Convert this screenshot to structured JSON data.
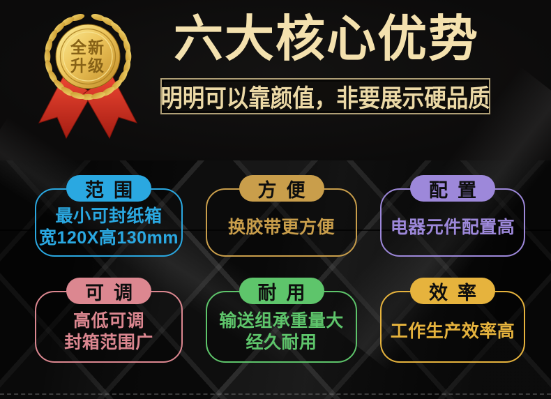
{
  "medal": {
    "line1": "全新",
    "line2": "升级"
  },
  "header": {
    "title": "六大核心优势",
    "subtitle": "明明可以靠颜值，非要展示硬品质"
  },
  "advantages": [
    {
      "tag": "范围",
      "lines": [
        "最小可封纸箱",
        "宽120X高130mm"
      ],
      "color": "#2aa8e1"
    },
    {
      "tag": "方便",
      "lines": [
        "换胶带更方便"
      ],
      "color": "#c99e4b"
    },
    {
      "tag": "配置",
      "lines": [
        "电器元件配置高"
      ],
      "color": "#9d88da"
    },
    {
      "tag": "可调",
      "lines": [
        "高低可调",
        "封箱范围广"
      ],
      "color": "#dc8790"
    },
    {
      "tag": "耐用",
      "lines": [
        "输送组承重量大",
        "经久耐用"
      ],
      "color": "#5ec56b"
    },
    {
      "tag": "效率",
      "lines": [
        "工作生产效率高"
      ],
      "color": "#e6b33d"
    }
  ],
  "palette": {
    "title_text": "#f4e1ae",
    "subtitle_text": "#ecd9a6",
    "subtitle_border": "#af9f76",
    "pill_label": "#0e0e0e",
    "bg_top": "#0d0c0c",
    "bg_lower": "#171717",
    "medal_gold": "#e9bf55",
    "ribbon_red": "#d6301f"
  }
}
